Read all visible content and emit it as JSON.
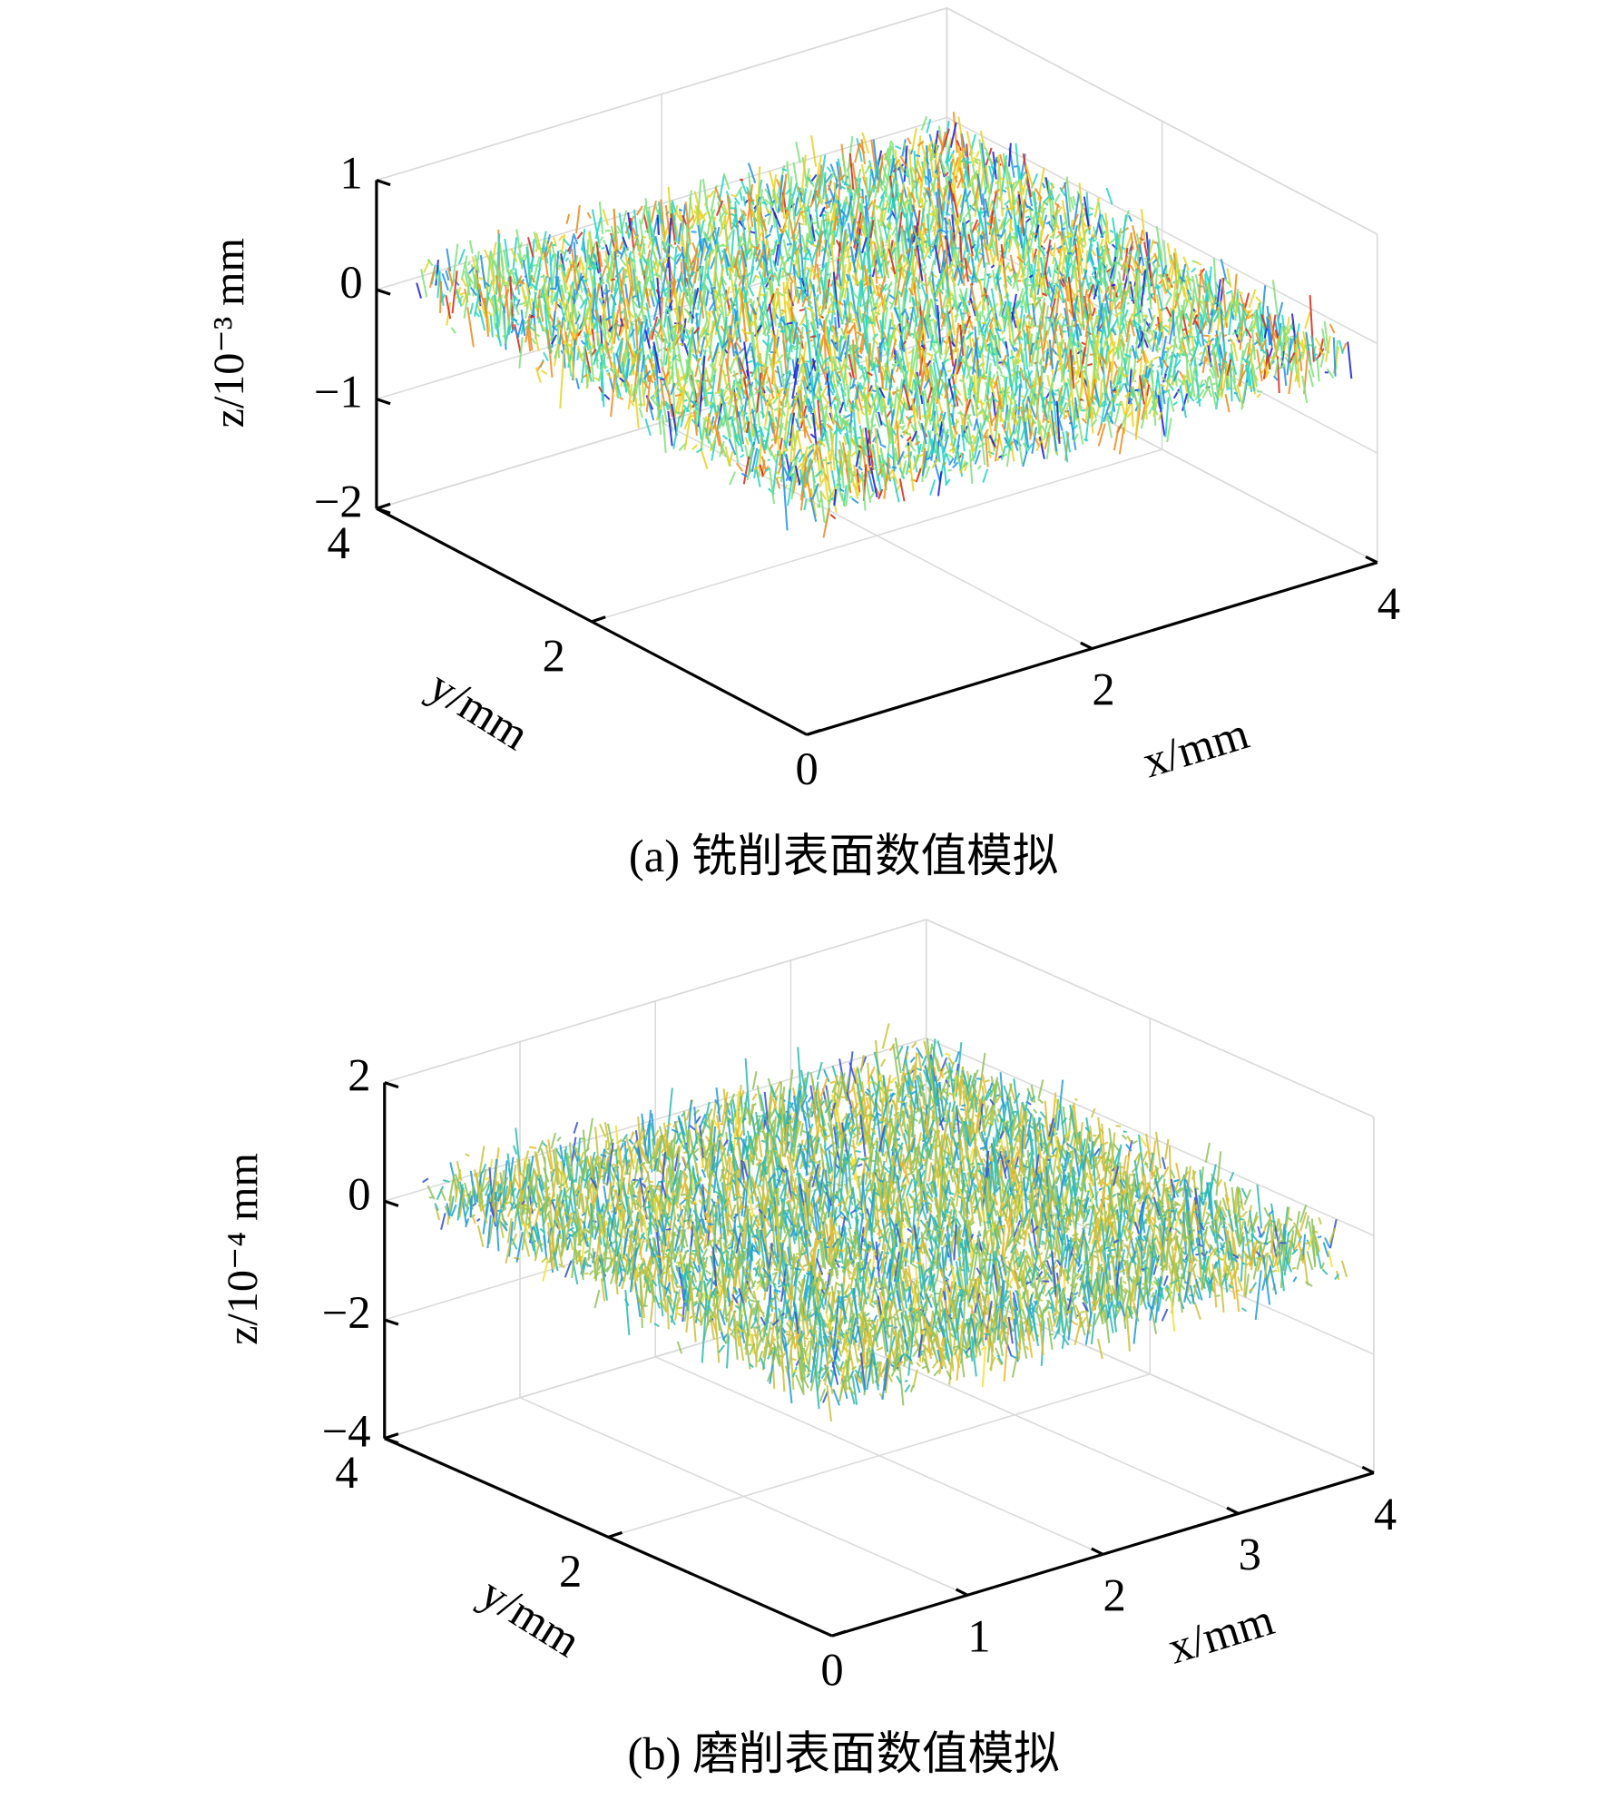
{
  "chart_data": [
    {
      "type": "surface",
      "title": "(a) 铣削表面数值模拟",
      "xlabel": "x/mm",
      "ylabel": "y/mm",
      "zlabel": "z/10⁻³ mm",
      "xlim": [
        0,
        4
      ],
      "xticks": [
        2,
        4
      ],
      "ylim": [
        0,
        4
      ],
      "yticks": [
        0,
        2,
        4
      ],
      "zlim": [
        -2,
        1
      ],
      "zticks": [
        {
          "value": -2,
          "label": "−2"
        },
        {
          "value": -1,
          "label": "−1"
        },
        0,
        1
      ],
      "grid": true,
      "colormap": [
        "#1a1ad8",
        "#1f8fe8",
        "#22d3c4",
        "#7fe07a",
        "#e8d21e",
        "#f08a1c",
        "#d8261a"
      ]
    },
    {
      "type": "surface",
      "title": "(b) 磨削表面数值模拟",
      "xlabel": "x/mm",
      "ylabel": "y/mm",
      "zlabel": "z/10⁻⁴ mm",
      "xlim": [
        0,
        4
      ],
      "xticks": [
        1,
        2,
        3,
        4
      ],
      "ylim": [
        0,
        4
      ],
      "yticks": [
        0,
        2,
        4
      ],
      "zlim": [
        -4,
        2
      ],
      "zticks": [
        {
          "value": -4,
          "label": "−4"
        },
        {
          "value": -2,
          "label": "−2"
        },
        0,
        2
      ],
      "grid": true,
      "colormap": [
        "#3450d8",
        "#1f9ad8",
        "#2bbbb0",
        "#8cc25a",
        "#c8c238",
        "#e8b82a",
        "#f5e030"
      ]
    }
  ]
}
